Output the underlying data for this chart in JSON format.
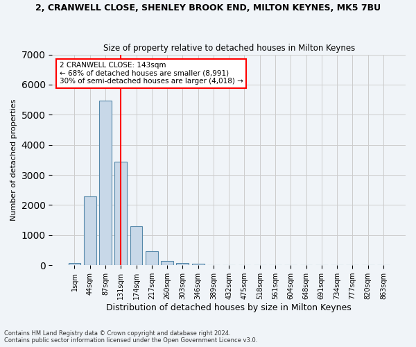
{
  "title": "2, CRANWELL CLOSE, SHENLEY BROOK END, MILTON KEYNES, MK5 7BU",
  "subtitle": "Size of property relative to detached houses in Milton Keynes",
  "xlabel": "Distribution of detached houses by size in Milton Keynes",
  "ylabel": "Number of detached properties",
  "footnote1": "Contains HM Land Registry data © Crown copyright and database right 2024.",
  "footnote2": "Contains public sector information licensed under the Open Government Licence v3.0.",
  "bin_labels": [
    "1sqm",
    "44sqm",
    "87sqm",
    "131sqm",
    "174sqm",
    "217sqm",
    "260sqm",
    "303sqm",
    "346sqm",
    "389sqm",
    "432sqm",
    "475sqm",
    "518sqm",
    "561sqm",
    "604sqm",
    "648sqm",
    "691sqm",
    "734sqm",
    "777sqm",
    "820sqm",
    "863sqm"
  ],
  "bar_values": [
    80,
    2280,
    5470,
    3430,
    1300,
    460,
    150,
    80,
    50,
    0,
    0,
    0,
    0,
    0,
    0,
    0,
    0,
    0,
    0,
    0,
    0
  ],
  "bar_color": "#c8d8e8",
  "bar_edge_color": "#5588aa",
  "vline_x": 3,
  "annotation_text1": "2 CRANWELL CLOSE: 143sqm",
  "annotation_text2": "← 68% of detached houses are smaller (8,991)",
  "annotation_text3": "30% of semi-detached houses are larger (4,018) →",
  "annotation_box_color": "white",
  "annotation_box_edge_color": "red",
  "vline_color": "red",
  "ylim": [
    0,
    7000
  ],
  "background_color": "#f0f4f8",
  "grid_color": "#cccccc"
}
